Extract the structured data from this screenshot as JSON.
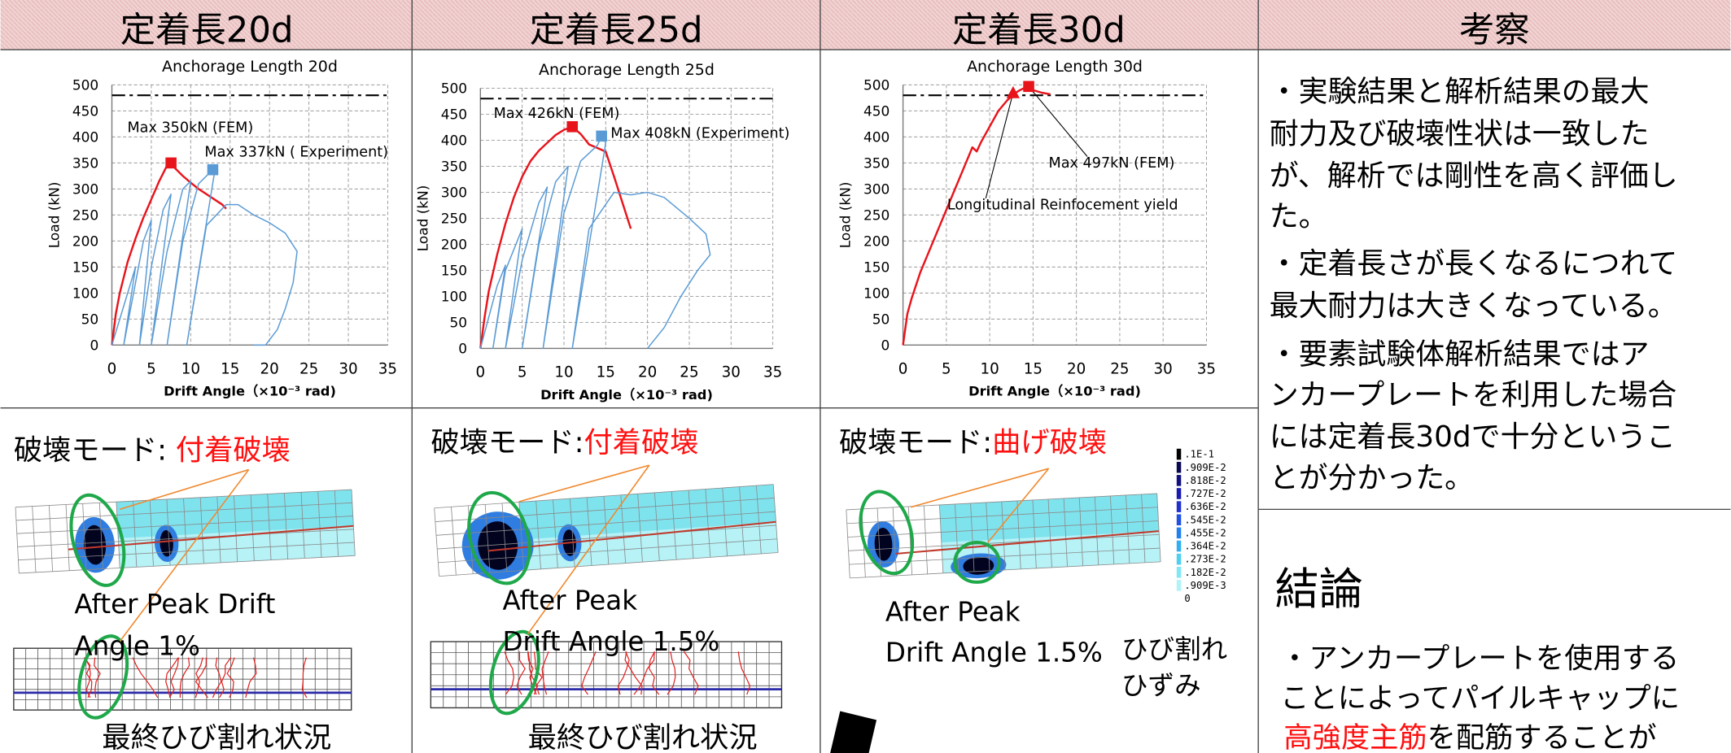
{
  "header": {
    "columns": [
      "定着長20d",
      "定着長25d",
      "定着長30d",
      "考察"
    ]
  },
  "chart_data": [
    {
      "type": "line",
      "title": "Anchorage Length 20d",
      "x_label": "Drift Angle（×10⁻³ rad)",
      "y_label": "Load (kN)",
      "xlim": [
        0,
        35
      ],
      "xticks": [
        0,
        5,
        10,
        15,
        20,
        25,
        30,
        35
      ],
      "ylim": [
        0,
        500
      ],
      "yticks": [
        0,
        50,
        100,
        150,
        200,
        250,
        300,
        350,
        400,
        450,
        500
      ],
      "grid": true,
      "hline": 480,
      "series": [
        {
          "color": "#e8141c",
          "x": [
            0,
            0.5,
            1,
            2,
            3,
            4,
            5,
            6,
            7,
            7.5,
            8,
            9,
            10,
            11,
            12,
            13,
            14,
            14.5
          ],
          "values": [
            0,
            60,
            100,
            160,
            205,
            245,
            280,
            315,
            345,
            350,
            340,
            325,
            312,
            300,
            290,
            280,
            270,
            262
          ]
        },
        {
          "color": "#5b9bd5",
          "x": [
            0,
            2,
            3,
            1.5,
            3,
            4,
            5,
            3.5,
            5,
            6.5,
            7.5,
            5,
            7,
            9,
            10,
            7,
            9,
            11,
            12.8,
            13,
            9.5,
            12,
            14.5,
            16,
            18,
            20,
            22,
            23.5,
            23,
            22,
            21,
            19.5,
            18
          ],
          "values": [
            0,
            100,
            150,
            0,
            120,
            200,
            240,
            0,
            150,
            260,
            290,
            0,
            180,
            300,
            315,
            0,
            200,
            310,
            337,
            330,
            0,
            230,
            270,
            270,
            250,
            235,
            215,
            180,
            120,
            70,
            30,
            0,
            0
          ]
        }
      ],
      "annotations": [
        {
          "text": "Max 350kN (FEM)",
          "color": "#e8141c",
          "shape": "square",
          "x": 7.5,
          "y": 350
        },
        {
          "text": "Max 337kN ( Experiment)",
          "color": "#5b9bd5",
          "shape": "square",
          "x": 12.8,
          "y": 337
        }
      ]
    },
    {
      "type": "line",
      "title": "Anchorage Length 25d",
      "x_label": "Drift Angle（×10⁻³ rad)",
      "y_label": "Load (kN)",
      "xlim": [
        0,
        35
      ],
      "xticks": [
        0,
        5,
        10,
        15,
        20,
        25,
        30,
        35
      ],
      "ylim": [
        0,
        500
      ],
      "yticks": [
        0,
        50,
        100,
        150,
        200,
        250,
        300,
        350,
        400,
        450,
        500
      ],
      "grid": true,
      "hline": 480,
      "series": [
        {
          "color": "#e8141c",
          "x": [
            0,
            0.5,
            1,
            2,
            3,
            4,
            5,
            6,
            7,
            8,
            9,
            10,
            11,
            12,
            13,
            14,
            15,
            16,
            17,
            18
          ],
          "values": [
            0,
            60,
            110,
            180,
            240,
            290,
            330,
            360,
            380,
            395,
            410,
            420,
            426,
            412,
            392,
            385,
            378,
            330,
            280,
            230
          ]
        },
        {
          "color": "#5b9bd5",
          "x": [
            0,
            2,
            3,
            1.5,
            3,
            5,
            3,
            5,
            7,
            8,
            5,
            7,
            9,
            10.5,
            7.5,
            10,
            12,
            14,
            14.5,
            15,
            11,
            13,
            16,
            18,
            20,
            22,
            25,
            27,
            27.5,
            26,
            24,
            22,
            20
          ],
          "values": [
            0,
            120,
            160,
            0,
            150,
            230,
            0,
            170,
            280,
            310,
            0,
            200,
            320,
            350,
            0,
            260,
            360,
            390,
            408,
            395,
            0,
            230,
            300,
            295,
            300,
            290,
            250,
            220,
            180,
            150,
            100,
            40,
            0
          ]
        }
      ],
      "annotations": [
        {
          "text": "Max 426kN (FEM)",
          "color": "#e8141c",
          "shape": "square",
          "x": 11,
          "y": 426
        },
        {
          "text": "Max 408kN (Experiment)",
          "color": "#5b9bd5",
          "shape": "square",
          "x": 14.5,
          "y": 408
        }
      ]
    },
    {
      "type": "line",
      "title": "Anchorage Length 30d",
      "x_label": "Drift Angle（×10⁻³ rad)",
      "y_label": "Load (kN)",
      "xlim": [
        0,
        35
      ],
      "xticks": [
        0,
        5,
        10,
        15,
        20,
        25,
        30,
        35
      ],
      "ylim": [
        0,
        500
      ],
      "yticks": [
        0,
        50,
        100,
        150,
        200,
        250,
        300,
        350,
        400,
        450,
        500
      ],
      "grid": true,
      "hline": 480,
      "series": [
        {
          "color": "#e8141c",
          "x": [
            0,
            0.5,
            1,
            2,
            3,
            4,
            5,
            6,
            7,
            8,
            8.5,
            9,
            10,
            11,
            12,
            13,
            13.5,
            14,
            14.5,
            15,
            16,
            17
          ],
          "values": [
            0,
            60,
            90,
            140,
            180,
            220,
            260,
            300,
            340,
            380,
            372,
            390,
            420,
            450,
            470,
            485,
            490,
            494,
            497,
            490,
            485,
            482
          ]
        }
      ],
      "annotations": [
        {
          "text": "Max 497kN (FEM)",
          "color": "#e8141c",
          "shape": "square",
          "x": 14.5,
          "y": 497
        },
        {
          "text": "Longitudinal Reinfocement yield",
          "color": "#e8141c",
          "shape": "triangle",
          "x": 12.7,
          "y": 485
        }
      ]
    }
  ],
  "panels": [
    {
      "mode_label": "破壊モード:",
      "mode": "付着破壊",
      "caption": [
        "After Peak   Drift",
        "Angle 1%"
      ],
      "crack_caption": "最終ひび割れ状況"
    },
    {
      "mode_label": "破壊モード:",
      "mode": "付着破壊",
      "caption": [
        "After Peak",
        "Drift Angle 1.5%"
      ],
      "crack_caption": "最終ひび割れ状況"
    },
    {
      "mode_label": "破壊モード:",
      "mode": "曲げ破壊",
      "caption": [
        "After Peak",
        "Drift Angle 1.5%"
      ],
      "side_caption": [
        "ひび割れ",
        "ひずみ"
      ]
    }
  ],
  "fem_legend": [
    ".1E-1",
    ".909E-2",
    ".818E-2",
    ".727E-2",
    ".636E-2",
    ".545E-2",
    ".455E-2",
    ".364E-2",
    ".273E-2",
    ".182E-2",
    ".909E-3",
    "0"
  ],
  "discussion": {
    "paragraphs": [
      [
        "・実験結果と解析結果の最大",
        "耐力及び破壊性状は一致した",
        "が、解析では剛性を高く評価し",
        "た。"
      ],
      [
        "・定着長さが長くなるにつれて",
        "最大耐力は大きくなっている。"
      ],
      [
        "・要素試験体解析結果ではア",
        "ンカープレートを利用した場合",
        "には定着長30dで十分というこ",
        "とが分かった。"
      ]
    ]
  },
  "conclusion": {
    "title": "結論",
    "lines": [
      "・アンカープレートを使用する",
      "ことによってパイルキャップに"
    ],
    "highlight": "高強度主筋",
    "rest": "を配筋することが"
  }
}
